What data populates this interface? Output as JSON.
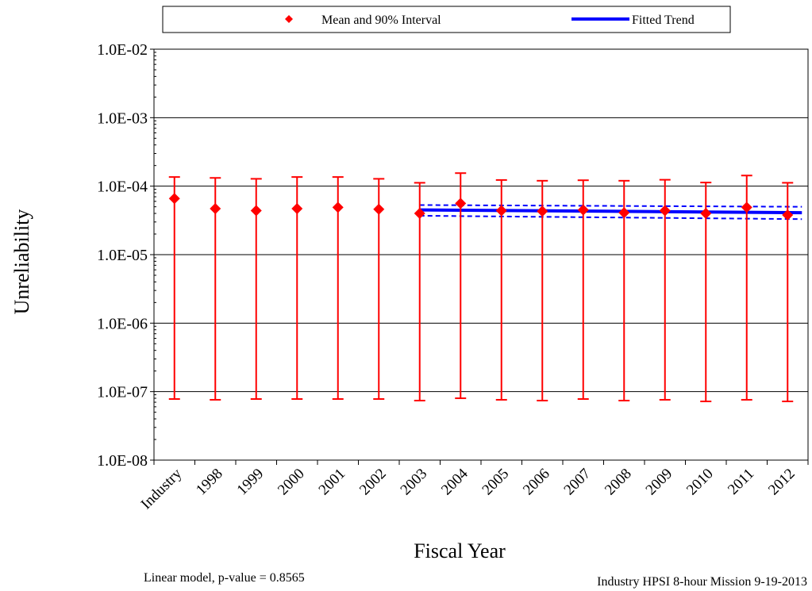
{
  "chart_data": {
    "type": "scatter",
    "ylabel": "Unreliability",
    "xlabel": "Fiscal Year",
    "y_scale": "log",
    "ylim": [
      1e-08,
      0.01
    ],
    "y_ticks": [
      "1.0E-08",
      "1.0E-07",
      "1.0E-06",
      "1.0E-05",
      "1.0E-04",
      "1.0E-03",
      "1.0E-02"
    ],
    "grid": "horizontal",
    "legend_placement": "top",
    "legend": {
      "points_label": "Mean and 90% Interval",
      "trend_label": "Fitted Trend"
    },
    "categories": [
      "Industry",
      "1998",
      "1999",
      "2000",
      "2001",
      "2002",
      "2003",
      "2004",
      "2005",
      "2006",
      "2007",
      "2008",
      "2009",
      "2010",
      "2011",
      "2012"
    ],
    "series": [
      {
        "name": "Mean and 90% Interval",
        "color": "#ff0000",
        "mean": [
          6.6e-05,
          4.7e-05,
          4.4e-05,
          4.7e-05,
          4.9e-05,
          4.6e-05,
          4e-05,
          5.6e-05,
          4.4e-05,
          4.3e-05,
          4.5e-05,
          4.1e-05,
          4.4e-05,
          4e-05,
          4.9e-05,
          3.8e-05
        ],
        "upper": [
          0.000136,
          0.000132,
          0.000128,
          0.000136,
          0.000136,
          0.000128,
          0.000112,
          0.000155,
          0.000123,
          0.00012,
          0.000122,
          0.00012,
          0.000124,
          0.000113,
          0.000143,
          0.000112
        ],
        "lower": [
          7.8e-08,
          7.6e-08,
          7.8e-08,
          7.8e-08,
          7.8e-08,
          7.8e-08,
          7.4e-08,
          8e-08,
          7.6e-08,
          7.4e-08,
          7.8e-08,
          7.4e-08,
          7.6e-08,
          7.2e-08,
          7.6e-08,
          7.2e-08
        ]
      },
      {
        "name": "Fitted Trend",
        "color": "#0000ff",
        "x": [
          "2003",
          "2012"
        ],
        "fit": [
          4.5e-05,
          4.1e-05
        ],
        "upper": [
          5.3e-05,
          5e-05
        ],
        "lower": [
          3.7e-05,
          3.3e-05
        ]
      }
    ],
    "annotations": {
      "left_note": "Linear model, p-value = 0.8565",
      "right_note": "Industry HPSI 8-hour Mission 9-19-2013"
    }
  }
}
